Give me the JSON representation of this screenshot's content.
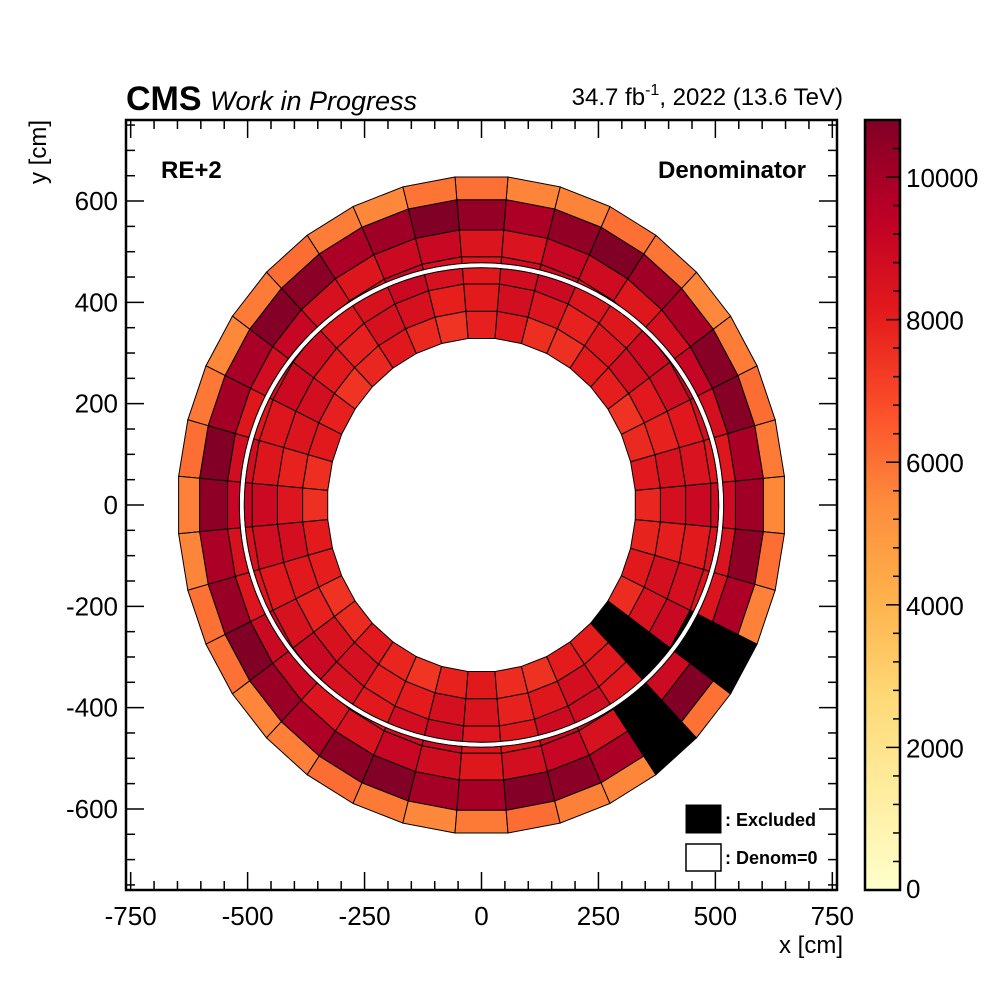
{
  "header": {
    "experiment": "CMS",
    "status": "Work in Progress",
    "lumi_value": "34.7 fb",
    "lumi_exponent": "-1",
    "lumi_suffix": ", 2022 (13.6 TeV)"
  },
  "chart_data": {
    "type": "heatmap",
    "title": "",
    "region_label": "RE+2",
    "quantity_label": "Denominator",
    "xlabel": "x [cm]",
    "ylabel": "y [cm]",
    "xlim": [
      -760,
      760
    ],
    "ylim": [
      -760,
      760
    ],
    "x_ticks": [
      -750,
      -500,
      -250,
      0,
      250,
      500,
      750
    ],
    "x_tick_labels": [
      "-750",
      "-500",
      "-250",
      "0",
      "250",
      "500",
      "750"
    ],
    "y_ticks": [
      -600,
      -400,
      -200,
      0,
      200,
      400,
      600
    ],
    "y_tick_labels": [
      "-600",
      "-400",
      "-200",
      "0",
      "200",
      "400",
      "600"
    ],
    "colorbar": {
      "range": [
        0,
        10800
      ],
      "ticks": [
        0,
        2000,
        4000,
        6000,
        8000,
        10000
      ],
      "tick_labels": [
        "0",
        "2000",
        "4000",
        "6000",
        "8000",
        "10000"
      ]
    },
    "sectors": 36,
    "rings": [
      {
        "r_inner": 330,
        "r_outer": 384
      },
      {
        "r_inner": 384,
        "r_outer": 438
      },
      {
        "r_inner": 438,
        "r_outer": 492
      },
      {
        "r_inner": 492,
        "r_outer": 545
      },
      {
        "r_inner": 545,
        "r_outer": 605
      },
      {
        "r_inner": 605,
        "r_outer": 650
      }
    ],
    "base_values": [
      7800,
      8300,
      8600,
      8700,
      10300,
      5800
    ],
    "separator_ring_radius": 492,
    "excluded": [
      {
        "ring": 0,
        "sector": 32
      },
      {
        "ring": 1,
        "sector": 32
      },
      {
        "ring": 2,
        "sector": 32
      },
      {
        "ring": 3,
        "sector": 31
      },
      {
        "ring": 4,
        "sector": 31
      },
      {
        "ring": 5,
        "sector": 31
      },
      {
        "ring": 3,
        "sector": 33
      },
      {
        "ring": 4,
        "sector": 33
      },
      {
        "ring": 5,
        "sector": 33
      }
    ],
    "legend": [
      {
        "label": ": Excluded",
        "color": "#000000"
      },
      {
        "label": ": Denom=0",
        "color": "#ffffff"
      }
    ]
  }
}
